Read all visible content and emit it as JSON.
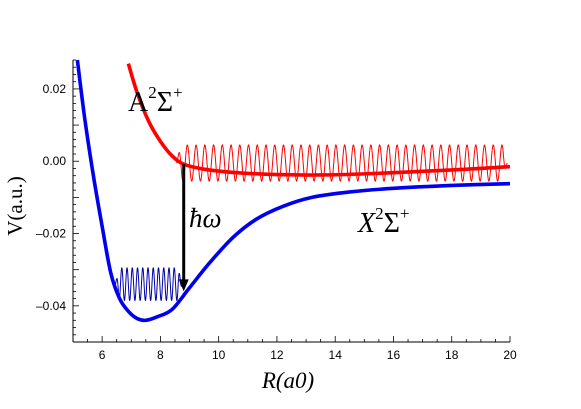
{
  "chart_data": {
    "type": "line",
    "xlabel": "R(a0)",
    "ylabel": "V(a.u.)",
    "xlim": [
      5.0,
      20.0
    ],
    "ylim": [
      -0.05,
      0.028
    ],
    "x_ticks": [
      6,
      8,
      10,
      12,
      14,
      16,
      18,
      20
    ],
    "x_tick_labels": [
      "6",
      "8",
      "10",
      "12",
      "14",
      "16",
      "18",
      "20"
    ],
    "y_ticks": [
      0.02,
      0.0,
      -0.02,
      -0.04
    ],
    "y_tick_labels": [
      "0.02",
      "0.00",
      "–0.02",
      "–0.04"
    ],
    "grid": false,
    "series": [
      {
        "name": "A²Σ⁺",
        "color": "#ff0000",
        "points": [
          [
            6.9,
            0.027
          ],
          [
            7.2,
            0.019
          ],
          [
            7.6,
            0.011
          ],
          [
            8.0,
            0.0055
          ],
          [
            8.4,
            0.0015
          ],
          [
            8.8,
            -0.0008
          ],
          [
            9.5,
            -0.0022
          ],
          [
            10.5,
            -0.0031
          ],
          [
            12,
            -0.0037
          ],
          [
            13.5,
            -0.0038
          ],
          [
            15,
            -0.0035
          ],
          [
            17,
            -0.0028
          ],
          [
            18.5,
            -0.0022
          ],
          [
            20,
            -0.0015
          ]
        ]
      },
      {
        "name": "X²Σ⁺",
        "color": "#0000ee",
        "points": [
          [
            5.15,
            0.028
          ],
          [
            5.4,
            0.012
          ],
          [
            5.7,
            -0.004
          ],
          [
            6.0,
            -0.018
          ],
          [
            6.3,
            -0.031
          ],
          [
            6.6,
            -0.038
          ],
          [
            6.9,
            -0.0415
          ],
          [
            7.2,
            -0.0435
          ],
          [
            7.5,
            -0.044
          ],
          [
            7.9,
            -0.043
          ],
          [
            8.4,
            -0.041
          ],
          [
            9.0,
            -0.035
          ],
          [
            9.7,
            -0.028
          ],
          [
            10.5,
            -0.021
          ],
          [
            11.3,
            -0.016
          ],
          [
            12.2,
            -0.0125
          ],
          [
            13.2,
            -0.01
          ],
          [
            14.5,
            -0.0085
          ],
          [
            16,
            -0.0075
          ],
          [
            18,
            -0.0067
          ],
          [
            20,
            -0.0062
          ]
        ]
      }
    ],
    "wavefunctions": [
      {
        "color": "#ff0000",
        "baseline": -0.0005,
        "x_range": [
          8.55,
          19.9
        ],
        "amplitude": 0.005,
        "period": 0.3
      },
      {
        "color": "#0000aa",
        "baseline": -0.034,
        "x_range": [
          6.45,
          8.75
        ],
        "amplitude": 0.0045,
        "period": 0.18
      }
    ],
    "annotations": {
      "A_state": {
        "base": "A",
        "sup1": "2",
        "sigma": "Σ",
        "sup2": "+"
      },
      "X_state": {
        "base": "X",
        "sup1": "2",
        "sigma": "Σ",
        "sup2": "+"
      },
      "transition": "ħω",
      "arrow": {
        "x": 8.8,
        "y_start": -0.0008,
        "y_end": -0.036,
        "color": "#000000"
      }
    }
  }
}
